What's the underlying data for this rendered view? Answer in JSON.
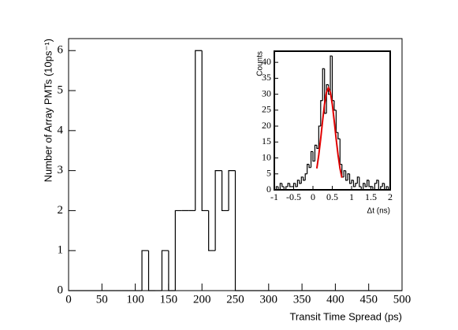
{
  "chart_data": [
    {
      "type": "histogram",
      "xlabel": "Transit Time Spread (ps)",
      "ylabel": "Number of Array PMTs (10ps⁻¹)",
      "color": "#000000",
      "bins": [
        0,
        10,
        20,
        30,
        40,
        50,
        60,
        70,
        80,
        90,
        100,
        110,
        120,
        130,
        140,
        150,
        160,
        170,
        180,
        190,
        200,
        210,
        220,
        230,
        240,
        250,
        260,
        270,
        280,
        290,
        300,
        310,
        320,
        330,
        340,
        350,
        360,
        370,
        380,
        390,
        400,
        410,
        420,
        430,
        440,
        450,
        460,
        470,
        480,
        490,
        500
      ],
      "counts": [
        0,
        0,
        0,
        0,
        0,
        0,
        0,
        0,
        0,
        0,
        0,
        1,
        0,
        0,
        1,
        0,
        2,
        2,
        2,
        6,
        2,
        1,
        3,
        2,
        3,
        0,
        0,
        0,
        0,
        0,
        0,
        0,
        0,
        0,
        0,
        0,
        0,
        0,
        0,
        0,
        0,
        0,
        0,
        0,
        0,
        0,
        0,
        0,
        0,
        0
      ],
      "xlim": [
        0,
        500
      ],
      "ylim": [
        0,
        6.3
      ],
      "xticks": [
        0,
        50,
        100,
        150,
        200,
        250,
        300,
        350,
        400,
        450,
        500
      ],
      "yticks": [
        0,
        1,
        2,
        3,
        4,
        5,
        6
      ]
    },
    {
      "type": "histogram",
      "xlabel": "Δt (ns)",
      "ylabel": "Counts",
      "color": "#000000",
      "bins": [
        -1,
        -0.95,
        -0.9,
        -0.85,
        -0.8,
        -0.75,
        -0.7,
        -0.65,
        -0.6,
        -0.55,
        -0.5,
        -0.45,
        -0.4,
        -0.35,
        -0.3,
        -0.25,
        -0.2,
        -0.15,
        -0.1,
        -0.05,
        0,
        0.05,
        0.1,
        0.15,
        0.2,
        0.25,
        0.3,
        0.35,
        0.4,
        0.45,
        0.5,
        0.55,
        0.6,
        0.65,
        0.7,
        0.75,
        0.8,
        0.85,
        0.9,
        0.95,
        1,
        1.05,
        1.1,
        1.15,
        1.2,
        1.25,
        1.3,
        1.35,
        1.4,
        1.45,
        1.5,
        1.55,
        1.6,
        1.65,
        1.7,
        1.75,
        1.8,
        1.85,
        1.9,
        1.95,
        2
      ],
      "counts": [
        0,
        1,
        0,
        2,
        1,
        0,
        1,
        2,
        1,
        1,
        2,
        1,
        3,
        2,
        4,
        3,
        5,
        8,
        7,
        12,
        9,
        14,
        13,
        20,
        28,
        38,
        24,
        33,
        30,
        42,
        28,
        25,
        18,
        16,
        8,
        4,
        6,
        3,
        5,
        2,
        3,
        1,
        2,
        4,
        1,
        0,
        2,
        1,
        3,
        1,
        1,
        0,
        2,
        3,
        0,
        1,
        2,
        0,
        1,
        0
      ],
      "fit": {
        "color": "#e00000",
        "x": [
          0.1,
          0.15,
          0.2,
          0.25,
          0.3,
          0.35,
          0.4,
          0.45,
          0.5,
          0.55,
          0.6,
          0.65,
          0.7,
          0.75
        ],
        "values": [
          6.7,
          10.9,
          16,
          21.7,
          26.9,
          30.6,
          32,
          30.6,
          26.9,
          21.7,
          16,
          10.9,
          6.7,
          3.8
        ]
      },
      "xlim": [
        -1,
        2
      ],
      "ylim": [
        0,
        43.5
      ],
      "xticks": [
        -1,
        -0.5,
        0,
        0.5,
        1,
        1.5,
        2
      ],
      "yticks": [
        0,
        5,
        10,
        15,
        20,
        25,
        30,
        35,
        40
      ]
    }
  ]
}
